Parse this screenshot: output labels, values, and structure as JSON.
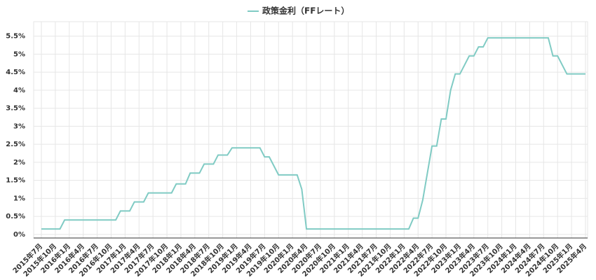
{
  "chart_data": {
    "type": "line",
    "categories": [
      "2015年7月",
      null,
      null,
      "2015年10月",
      null,
      null,
      "2016年1月",
      null,
      null,
      "2016年4月",
      null,
      null,
      "2016年7月",
      null,
      null,
      "2016年10月",
      null,
      null,
      "2017年1月",
      null,
      null,
      "2017年4月",
      null,
      null,
      "2017年7月",
      null,
      null,
      "2017年10月",
      null,
      null,
      "2018年1月",
      null,
      null,
      "2018年4月",
      null,
      null,
      "2018年7月",
      null,
      null,
      "2018年10月",
      null,
      null,
      "2019年1月",
      null,
      null,
      "2019年4月",
      null,
      null,
      "2019年7月",
      null,
      null,
      "2019年10月",
      null,
      null,
      "2020年1月",
      null,
      null,
      "2020年4月",
      null,
      null,
      "2020年7月",
      null,
      null,
      "2020年10月",
      null,
      null,
      "2021年1月",
      null,
      null,
      "2021年4月",
      null,
      null,
      "2021年7月",
      null,
      null,
      "2021年10月",
      null,
      null,
      "2022年1月",
      null,
      null,
      "2022年4月",
      null,
      null,
      "2022年7月",
      null,
      null,
      "2022年10月",
      null,
      null,
      "2023年1月",
      null,
      null,
      "2023年4月",
      null,
      null,
      "2023年7月",
      null,
      null,
      "2023年10月",
      null,
      null,
      "2024年1月",
      null,
      null,
      "2024年4月",
      null,
      null,
      "2024年7月",
      null,
      null,
      "2024年10月",
      null,
      null,
      "2025年1月",
      null,
      null,
      "2025年4月"
    ],
    "series": [
      {
        "name": "政策金利（FFレート）",
        "color": "#80cbc4",
        "values": [
          0.15,
          0.15,
          0.15,
          0.15,
          0.15,
          0.4,
          0.4,
          0.4,
          0.4,
          0.4,
          0.4,
          0.4,
          0.4,
          0.4,
          0.4,
          0.4,
          0.4,
          0.65,
          0.65,
          0.65,
          0.9,
          0.9,
          0.9,
          1.15,
          1.15,
          1.15,
          1.15,
          1.15,
          1.15,
          1.4,
          1.4,
          1.4,
          1.7,
          1.7,
          1.7,
          1.95,
          1.95,
          1.95,
          2.2,
          2.2,
          2.2,
          2.4,
          2.4,
          2.4,
          2.4,
          2.4,
          2.4,
          2.4,
          2.15,
          2.15,
          1.9,
          1.65,
          1.65,
          1.65,
          1.65,
          1.65,
          1.25,
          0.15,
          0.15,
          0.15,
          0.15,
          0.15,
          0.15,
          0.15,
          0.15,
          0.15,
          0.15,
          0.15,
          0.15,
          0.15,
          0.15,
          0.15,
          0.15,
          0.15,
          0.15,
          0.15,
          0.15,
          0.15,
          0.15,
          0.15,
          0.45,
          0.45,
          0.95,
          1.7,
          2.45,
          2.45,
          3.2,
          3.2,
          4.0,
          4.45,
          4.45,
          4.7,
          4.95,
          4.95,
          5.2,
          5.2,
          5.45,
          5.45,
          5.45,
          5.45,
          5.45,
          5.45,
          5.45,
          5.45,
          5.45,
          5.45,
          5.45,
          5.45,
          5.45,
          5.45,
          4.95,
          4.95,
          4.7,
          4.45,
          4.45,
          4.45,
          4.45,
          4.45
        ]
      }
    ],
    "ylim": [
      -0.1,
      5.9
    ],
    "yticks": [
      {
        "value": 0,
        "label": "0%"
      },
      {
        "value": 0.5,
        "label": "0.5%"
      },
      {
        "value": 1,
        "label": "1%"
      },
      {
        "value": 1.5,
        "label": "1.5%"
      },
      {
        "value": 2,
        "label": "2%"
      },
      {
        "value": 2.5,
        "label": "2.5%"
      },
      {
        "value": 3,
        "label": "3%"
      },
      {
        "value": 3.5,
        "label": "3.5%"
      },
      {
        "value": 4,
        "label": "4%"
      },
      {
        "value": 4.5,
        "label": "4.5%"
      },
      {
        "value": 5,
        "label": "5%"
      },
      {
        "value": 5.5,
        "label": "5.5%"
      }
    ],
    "grid": true,
    "legend": "top"
  }
}
